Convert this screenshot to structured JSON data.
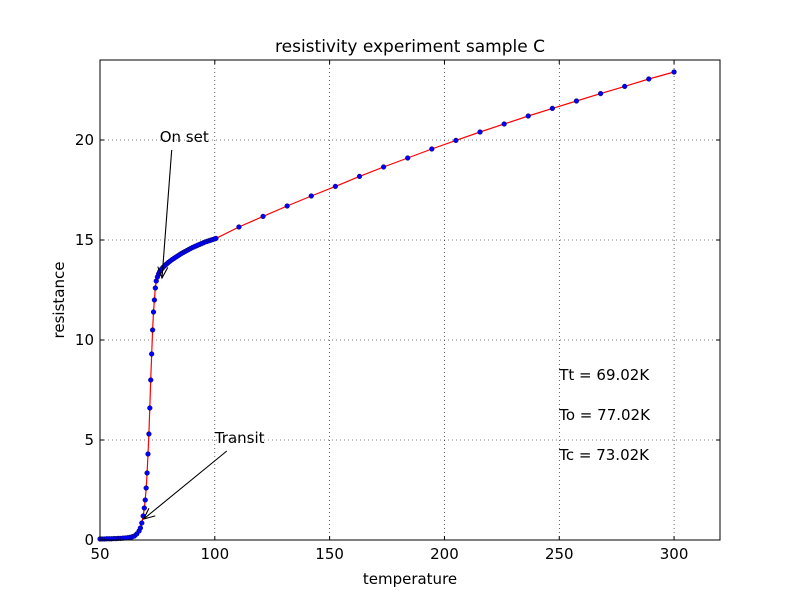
{
  "chart_data": {
    "type": "line",
    "title": "resistivity experiment sample C",
    "xlabel": "temperature",
    "ylabel": "resistance",
    "xlim": [
      50,
      320
    ],
    "ylim": [
      0,
      24
    ],
    "xticks": [
      50,
      100,
      150,
      200,
      250,
      300
    ],
    "yticks": [
      0,
      5,
      10,
      15,
      20
    ],
    "xtick_labels": [
      "50",
      "100",
      "150",
      "200",
      "250",
      "300"
    ],
    "ytick_labels": [
      "0",
      "5",
      "10",
      "15",
      "20"
    ],
    "grid": true,
    "line_color": "#ff0000",
    "marker_color": "#0000ff",
    "series": [
      {
        "x": [
          50,
          51,
          52,
          53,
          54,
          55,
          56,
          57,
          58,
          59,
          60,
          61,
          62,
          63,
          64,
          65,
          66,
          67,
          67.6,
          68.2,
          68.8,
          69.3,
          69.7,
          70.1,
          70.5,
          70.9,
          71.3,
          71.7,
          72.1,
          72.5,
          72.9,
          73.3,
          73.7,
          74.1,
          74.5,
          75.0,
          75.5,
          76.0,
          76.5,
          77.0,
          77.6,
          78.3,
          79.0,
          79.8,
          80.6,
          81.4,
          82.2,
          83.0,
          83.8,
          84.6,
          85.4,
          86.2,
          87.0,
          87.8,
          88.6,
          89.4,
          90.2,
          91.0,
          91.8,
          92.6,
          93.4,
          94.2,
          95.0,
          95.8,
          96.6,
          97.4,
          98.2,
          99.0,
          99.8,
          100.5,
          110.5,
          121,
          131.5,
          142,
          152.5,
          163,
          173.5,
          184,
          194.5,
          205,
          215.5,
          226,
          236.5,
          247,
          257.5,
          268,
          278.5,
          289,
          300
        ],
        "y": [
          0.05,
          0.05,
          0.05,
          0.06,
          0.06,
          0.06,
          0.07,
          0.07,
          0.08,
          0.08,
          0.09,
          0.1,
          0.11,
          0.13,
          0.16,
          0.2,
          0.3,
          0.45,
          0.6,
          0.85,
          1.2,
          1.6,
          2.0,
          2.6,
          3.35,
          4.3,
          5.3,
          6.6,
          8.0,
          9.3,
          10.5,
          11.4,
          12.0,
          12.6,
          12.95,
          13.15,
          13.3,
          13.42,
          13.5,
          13.57,
          13.65,
          13.73,
          13.8,
          13.88,
          13.95,
          14.02,
          14.08,
          14.14,
          14.2,
          14.26,
          14.32,
          14.37,
          14.42,
          14.47,
          14.52,
          14.57,
          14.62,
          14.66,
          14.7,
          14.74,
          14.78,
          14.82,
          14.86,
          14.9,
          14.93,
          14.96,
          14.99,
          15.02,
          15.05,
          15.08,
          15.65,
          16.18,
          16.7,
          17.2,
          17.68,
          18.18,
          18.65,
          19.1,
          19.55,
          19.98,
          20.4,
          20.8,
          21.2,
          21.58,
          21.95,
          22.32,
          22.68,
          23.05,
          23.4
        ]
      }
    ],
    "annotations": [
      {
        "text": "On set",
        "xytext": [
          76,
          19.9
        ],
        "xy": [
          77,
          13.1
        ]
      },
      {
        "text": "Transit",
        "xytext": [
          100,
          4.85
        ],
        "xy": [
          69,
          1.05
        ]
      }
    ],
    "text_labels": [
      {
        "text": "Tt = 69.02K",
        "x": 250,
        "y": 8.0
      },
      {
        "text": "To = 77.02K",
        "x": 250,
        "y": 6.0
      },
      {
        "text": "Tc = 73.02K",
        "x": 250,
        "y": 4.0
      }
    ]
  }
}
